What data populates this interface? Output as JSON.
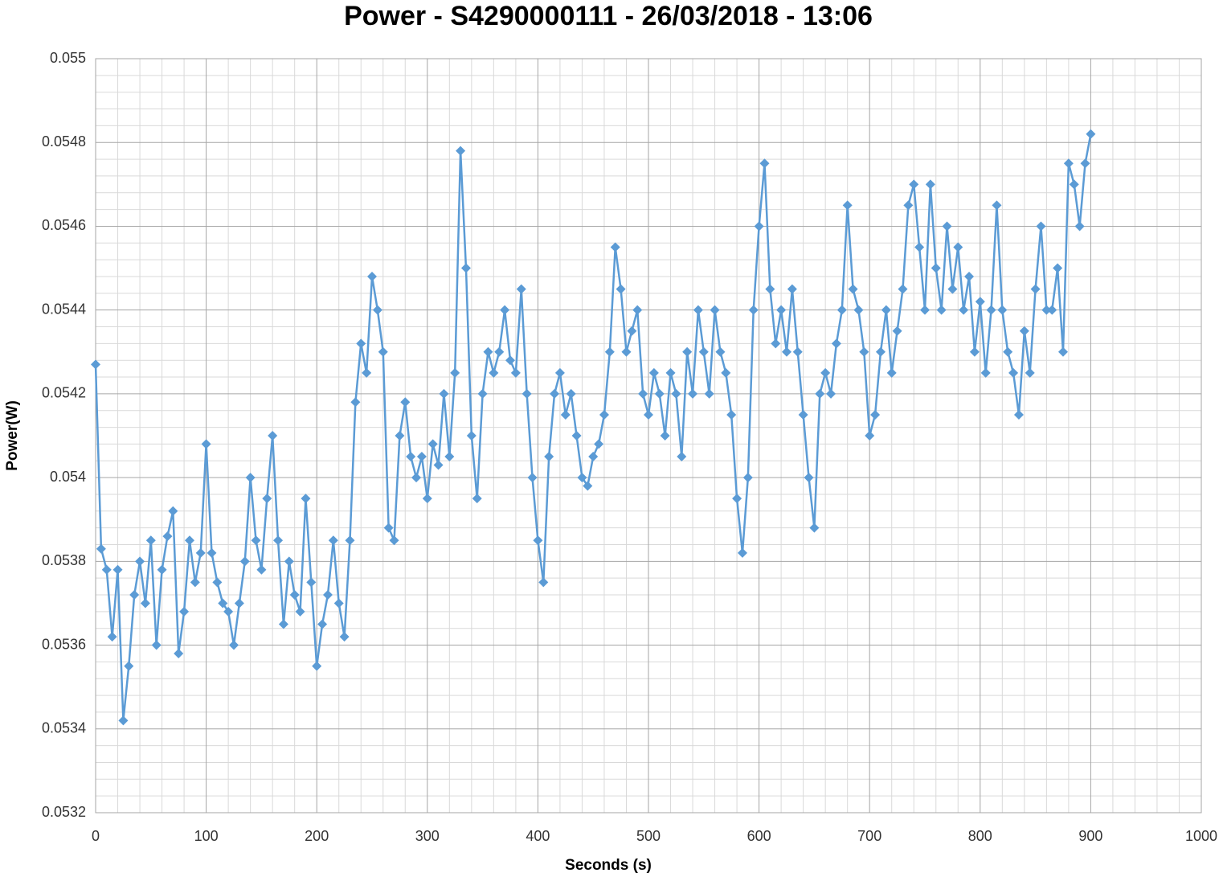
{
  "chart_data": {
    "type": "line",
    "title": "Power - S4290000111 - 26/03/2018 - 13:06",
    "x_label": "Seconds (s)",
    "y_label": "Power(W)",
    "color": "#5b9bd5",
    "marker": "diamond",
    "grid": true,
    "minor_grid": true,
    "xlim": [
      0,
      1000
    ],
    "xticks": [
      0,
      100,
      200,
      300,
      400,
      500,
      600,
      700,
      800,
      900,
      1000
    ],
    "ylim": [
      0.0532,
      0.055
    ],
    "yticks": [
      0.0532,
      0.0534,
      0.0536,
      0.0538,
      0.054,
      0.0542,
      0.0544,
      0.0546,
      0.0548,
      0.055
    ],
    "x": [
      0,
      5,
      10,
      15,
      20,
      25,
      30,
      35,
      40,
      45,
      50,
      55,
      60,
      65,
      70,
      75,
      80,
      85,
      90,
      95,
      100,
      105,
      110,
      115,
      120,
      125,
      130,
      135,
      140,
      145,
      150,
      155,
      160,
      165,
      170,
      175,
      180,
      185,
      190,
      195,
      200,
      205,
      210,
      215,
      220,
      225,
      230,
      235,
      240,
      245,
      250,
      255,
      260,
      265,
      270,
      275,
      280,
      285,
      290,
      295,
      300,
      305,
      310,
      315,
      320,
      325,
      330,
      335,
      340,
      345,
      350,
      355,
      360,
      365,
      370,
      375,
      380,
      385,
      390,
      395,
      400,
      405,
      410,
      415,
      420,
      425,
      430,
      435,
      440,
      445,
      450,
      455,
      460,
      465,
      470,
      475,
      480,
      485,
      490,
      495,
      500,
      505,
      510,
      515,
      520,
      525,
      530,
      535,
      540,
      545,
      550,
      555,
      560,
      565,
      570,
      575,
      580,
      585,
      590,
      595,
      600,
      605,
      610,
      615,
      620,
      625,
      630,
      635,
      640,
      645,
      650,
      655,
      660,
      665,
      670,
      675,
      680,
      685,
      690,
      695,
      700,
      705,
      710,
      715,
      720,
      725,
      730,
      735,
      740,
      745,
      750,
      755,
      760,
      765,
      770,
      775,
      780,
      785,
      790,
      795,
      800,
      805,
      810,
      815,
      820,
      825,
      830,
      835,
      840,
      845,
      850,
      855,
      860,
      865,
      870,
      875,
      880,
      885,
      890,
      895,
      900
    ],
    "values": [
      0.05427,
      0.05383,
      0.05378,
      0.05362,
      0.05378,
      0.05342,
      0.05355,
      0.05372,
      0.0538,
      0.0537,
      0.05385,
      0.0536,
      0.05378,
      0.05386,
      0.05392,
      0.05358,
      0.05368,
      0.05385,
      0.05375,
      0.05382,
      0.05408,
      0.05382,
      0.05375,
      0.0537,
      0.05368,
      0.0536,
      0.0537,
      0.0538,
      0.054,
      0.05385,
      0.05378,
      0.05395,
      0.0541,
      0.05385,
      0.05365,
      0.0538,
      0.05372,
      0.05368,
      0.05395,
      0.05375,
      0.05355,
      0.05365,
      0.05372,
      0.05385,
      0.0537,
      0.05362,
      0.05385,
      0.05418,
      0.05432,
      0.05425,
      0.05448,
      0.0544,
      0.0543,
      0.05388,
      0.05385,
      0.0541,
      0.05418,
      0.05405,
      0.054,
      0.05405,
      0.05395,
      0.05408,
      0.05403,
      0.0542,
      0.05405,
      0.05425,
      0.05478,
      0.0545,
      0.0541,
      0.05395,
      0.0542,
      0.0543,
      0.05425,
      0.0543,
      0.0544,
      0.05428,
      0.05425,
      0.05445,
      0.0542,
      0.054,
      0.05385,
      0.05375,
      0.05405,
      0.0542,
      0.05425,
      0.05415,
      0.0542,
      0.0541,
      0.054,
      0.05398,
      0.05405,
      0.05408,
      0.05415,
      0.0543,
      0.05455,
      0.05445,
      0.0543,
      0.05435,
      0.0544,
      0.0542,
      0.05415,
      0.05425,
      0.0542,
      0.0541,
      0.05425,
      0.0542,
      0.05405,
      0.0543,
      0.0542,
      0.0544,
      0.0543,
      0.0542,
      0.0544,
      0.0543,
      0.05425,
      0.05415,
      0.05395,
      0.05382,
      0.054,
      0.0544,
      0.0546,
      0.05475,
      0.05445,
      0.05432,
      0.0544,
      0.0543,
      0.05445,
      0.0543,
      0.05415,
      0.054,
      0.05388,
      0.0542,
      0.05425,
      0.0542,
      0.05432,
      0.0544,
      0.05465,
      0.05445,
      0.0544,
      0.0543,
      0.0541,
      0.05415,
      0.0543,
      0.0544,
      0.05425,
      0.05435,
      0.05445,
      0.05465,
      0.0547,
      0.05455,
      0.0544,
      0.0547,
      0.0545,
      0.0544,
      0.0546,
      0.05445,
      0.05455,
      0.0544,
      0.05448,
      0.0543,
      0.05442,
      0.05425,
      0.0544,
      0.05465,
      0.0544,
      0.0543,
      0.05425,
      0.05415,
      0.05435,
      0.05425,
      0.05445,
      0.0546,
      0.0544,
      0.0544,
      0.0545,
      0.0543,
      0.05475,
      0.0547,
      0.0546,
      0.05475,
      0.05482
    ]
  }
}
